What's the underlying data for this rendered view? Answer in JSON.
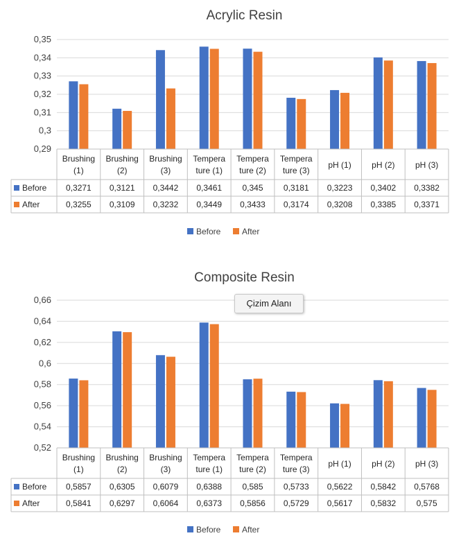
{
  "colors": {
    "before": "#4472C4",
    "after": "#ED7D31",
    "grid": "#d9d9d9",
    "border": "#bfbfbf"
  },
  "tooltip": {
    "label": "Çizim Alanı"
  },
  "chart_data": [
    {
      "type": "bar",
      "title": "Acrylic Resin",
      "categories": [
        [
          "Brushing",
          "(1)"
        ],
        [
          "Brushing",
          "(2)"
        ],
        [
          "Brushing",
          "(3)"
        ],
        [
          "Tempera",
          "ture (1)"
        ],
        [
          "Tempera",
          "ture (2)"
        ],
        [
          "Tempera",
          "ture (3)"
        ],
        [
          "pH (1)"
        ],
        [
          "pH (2)"
        ],
        [
          "pH (3)"
        ]
      ],
      "ylim": [
        0.29,
        0.35
      ],
      "yticks": [
        0.29,
        0.3,
        0.31,
        0.32,
        0.33,
        0.34,
        0.35
      ],
      "ytick_labels": [
        "0,29",
        "0,3",
        "0,31",
        "0,32",
        "0,33",
        "0,34",
        "0,35"
      ],
      "series": [
        {
          "name": "Before",
          "values": [
            0.3271,
            0.3121,
            0.3442,
            0.3461,
            0.345,
            0.3181,
            0.3223,
            0.3402,
            0.3382
          ],
          "labels": [
            "0,3271",
            "0,3121",
            "0,3442",
            "0,3461",
            "0,345",
            "0,3181",
            "0,3223",
            "0,3402",
            "0,3382"
          ]
        },
        {
          "name": "After",
          "values": [
            0.3255,
            0.3109,
            0.3232,
            0.3449,
            0.3433,
            0.3174,
            0.3208,
            0.3385,
            0.3371
          ],
          "labels": [
            "0,3255",
            "0,3109",
            "0,3232",
            "0,3449",
            "0,3433",
            "0,3174",
            "0,3208",
            "0,3385",
            "0,3371"
          ]
        }
      ],
      "grid": true,
      "legend": "bottom",
      "data_table": true
    },
    {
      "type": "bar",
      "title": "Composite Resin",
      "categories": [
        [
          "Brushing",
          "(1)"
        ],
        [
          "Brushing",
          "(2)"
        ],
        [
          "Brushing",
          "(3)"
        ],
        [
          "Tempera",
          "ture (1)"
        ],
        [
          "Tempera",
          "ture (2)"
        ],
        [
          "Tempera",
          "ture (3)"
        ],
        [
          "pH (1)"
        ],
        [
          "pH (2)"
        ],
        [
          "pH (3)"
        ]
      ],
      "ylim": [
        0.52,
        0.66
      ],
      "yticks": [
        0.52,
        0.54,
        0.56,
        0.58,
        0.6,
        0.62,
        0.64,
        0.66
      ],
      "ytick_labels": [
        "0,52",
        "0,54",
        "0,56",
        "0,58",
        "0,6",
        "0,62",
        "0,64",
        "0,66"
      ],
      "series": [
        {
          "name": "Before",
          "values": [
            0.5857,
            0.6305,
            0.6079,
            0.6388,
            0.585,
            0.5733,
            0.5622,
            0.5842,
            0.5768
          ],
          "labels": [
            "0,5857",
            "0,6305",
            "0,6079",
            "0,6388",
            "0,585",
            "0,5733",
            "0,5622",
            "0,5842",
            "0,5768"
          ]
        },
        {
          "name": "After",
          "values": [
            0.5841,
            0.6297,
            0.6064,
            0.6373,
            0.5856,
            0.5729,
            0.5617,
            0.5832,
            0.575
          ],
          "labels": [
            "0,5841",
            "0,6297",
            "0,6064",
            "0,6373",
            "0,5856",
            "0,5729",
            "0,5617",
            "0,5832",
            "0,575"
          ]
        }
      ],
      "grid": true,
      "legend": "bottom",
      "data_table": true
    }
  ]
}
